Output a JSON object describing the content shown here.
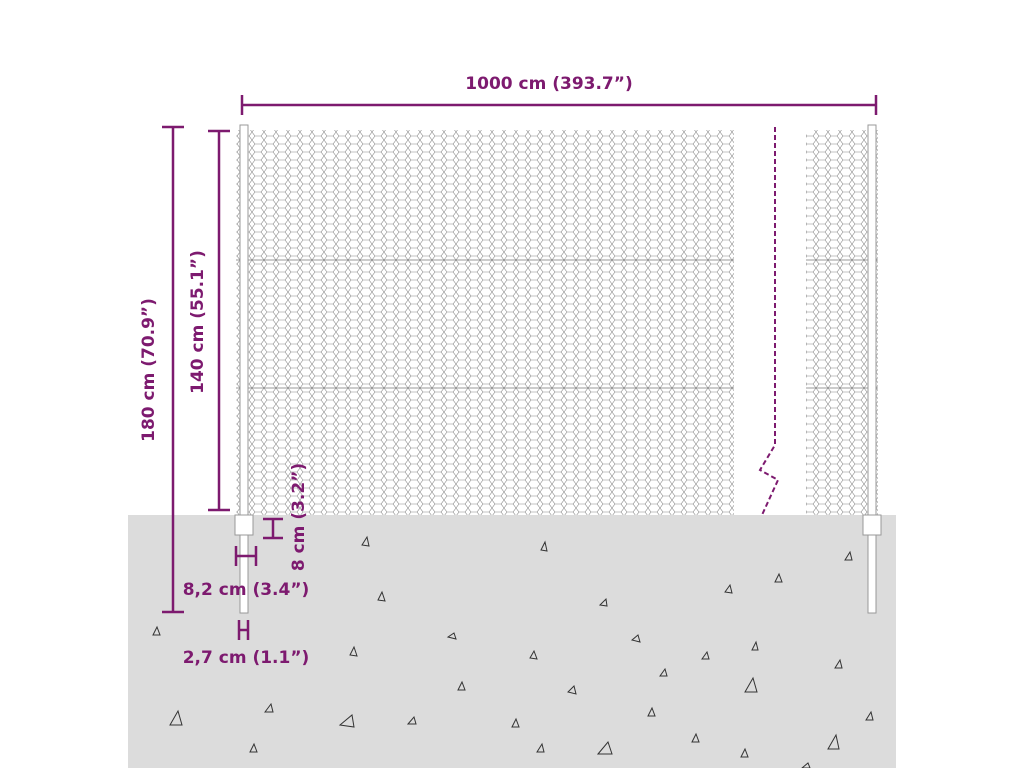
{
  "dimensions": {
    "width": "1000 cm (393.7”)",
    "total_height": "180 cm (70.9”)",
    "mesh_height": "140 cm (55.1”)",
    "post_base_height": "8 cm (3.2”)",
    "post_base_width": "8,2 cm (3.4”)",
    "post_width": "2,7 cm (1.1”)"
  }
}
